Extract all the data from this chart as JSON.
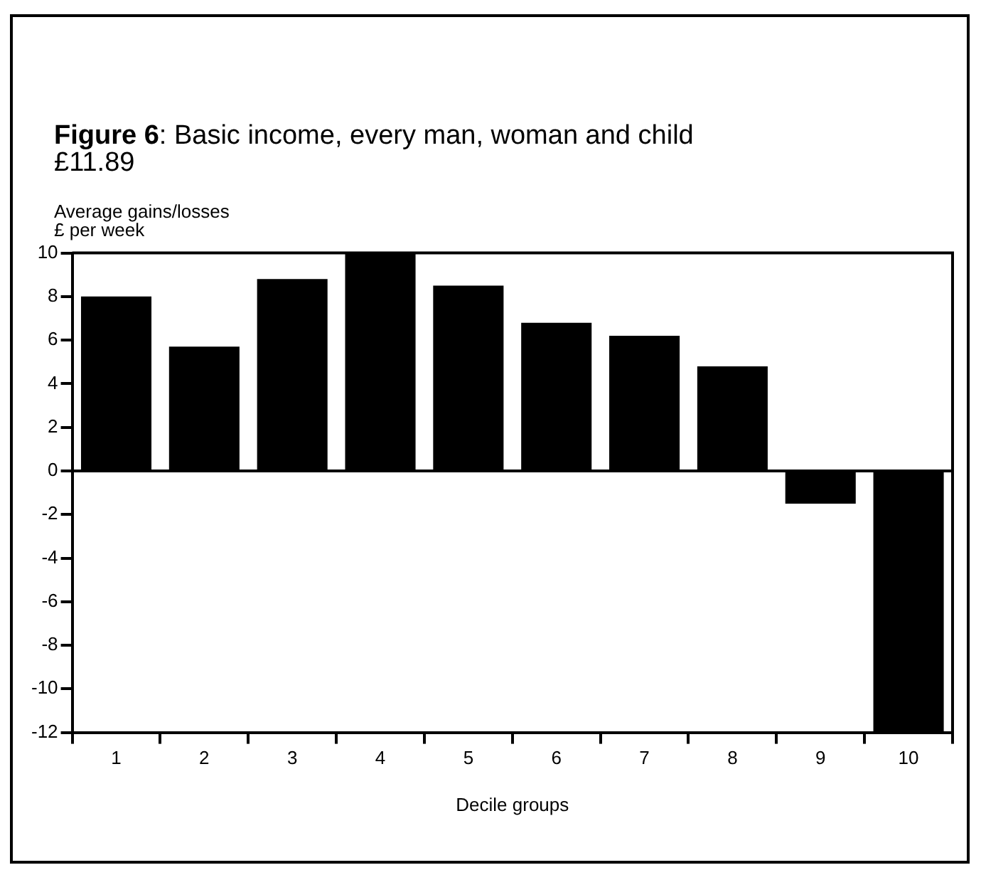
{
  "chart_data": {
    "type": "bar",
    "title": "Figure 6: Basic income, every man, woman and child £11.89",
    "ylabel": "Average gains/losses\n£ per week",
    "xlabel": "Decile groups",
    "categories": [
      "1",
      "2",
      "3",
      "4",
      "5",
      "6",
      "7",
      "8",
      "9",
      "10"
    ],
    "values": [
      8.0,
      5.7,
      8.8,
      10,
      8.5,
      6.8,
      6.2,
      4.8,
      -1.5,
      -12
    ],
    "color": "#000000",
    "ylim": [
      -12,
      10
    ],
    "yticks": [
      -12,
      -10,
      -8,
      -6,
      -4,
      -2,
      0,
      2,
      4,
      6,
      8,
      10
    ],
    "grid": false,
    "ref_lines": [
      {
        "axis": "y",
        "value": 0,
        "color": "#000000"
      }
    ]
  }
}
